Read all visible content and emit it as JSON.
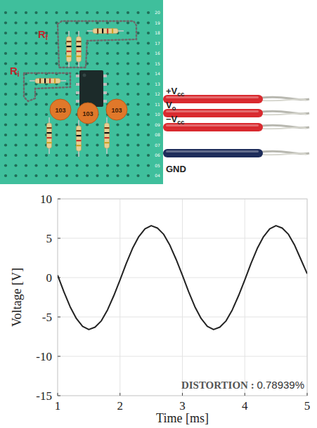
{
  "chart_data": {
    "type": "line",
    "x_label": "Time  [ms]",
    "y_label": "Voltage  [V]",
    "xlim": [
      1,
      5
    ],
    "xticks": [
      1,
      2,
      3,
      4,
      5
    ],
    "ylim": [
      -15,
      10
    ],
    "yticks": [
      -15,
      -10,
      -5,
      0,
      5,
      10
    ],
    "grid": true,
    "color": "#222222",
    "line_style": "solid",
    "annotations": [
      "DISTORTION :",
      "0.78939%"
    ],
    "x": [
      1.0,
      1.1,
      1.2,
      1.3,
      1.4,
      1.5,
      1.6,
      1.7,
      1.8,
      1.9,
      2.0,
      2.1,
      2.2,
      2.3,
      2.4,
      2.5,
      2.6,
      2.7,
      2.8,
      2.9,
      3.0,
      3.1,
      3.2,
      3.3,
      3.4,
      3.5,
      3.6,
      3.7,
      3.8,
      3.9,
      4.0,
      4.1,
      4.2,
      4.3,
      4.4,
      4.5,
      4.6,
      4.7,
      4.8,
      4.9,
      5.0
    ],
    "values": [
      0.3,
      -1.8,
      -3.7,
      -5.2,
      -6.2,
      -6.6,
      -6.3,
      -5.5,
      -4.1,
      -2.3,
      -0.3,
      1.8,
      3.7,
      5.2,
      6.2,
      6.6,
      6.3,
      5.5,
      4.1,
      2.3,
      0.3,
      -1.8,
      -3.7,
      -5.2,
      -6.2,
      -6.6,
      -6.3,
      -5.5,
      -4.1,
      -2.3,
      -0.3,
      1.8,
      3.7,
      5.2,
      6.2,
      6.6,
      6.3,
      5.5,
      4.1,
      2.3,
      0.5
    ]
  },
  "photo": {
    "row_numbers": [
      "20",
      "19",
      "18",
      "17",
      "16",
      "15",
      "14",
      "13",
      "12",
      "11",
      "10",
      "09",
      "08",
      "07",
      "06",
      "05",
      "04"
    ],
    "groups": [
      {
        "text": "R",
        "sub": "f"
      },
      {
        "text": "R",
        "sub": "i"
      }
    ],
    "capacitors": [
      "103",
      "103",
      "103"
    ],
    "wires": [
      {
        "text": "+V",
        "sub": "cc",
        "color": "#d92a2f"
      },
      {
        "text": "V",
        "sub": "o",
        "color": "#d92a2f"
      },
      {
        "text": "−V",
        "sub": "cc",
        "color": "#d92a2f"
      },
      {
        "text": "GND",
        "sub": "",
        "color": "#1d2c5a"
      }
    ]
  }
}
